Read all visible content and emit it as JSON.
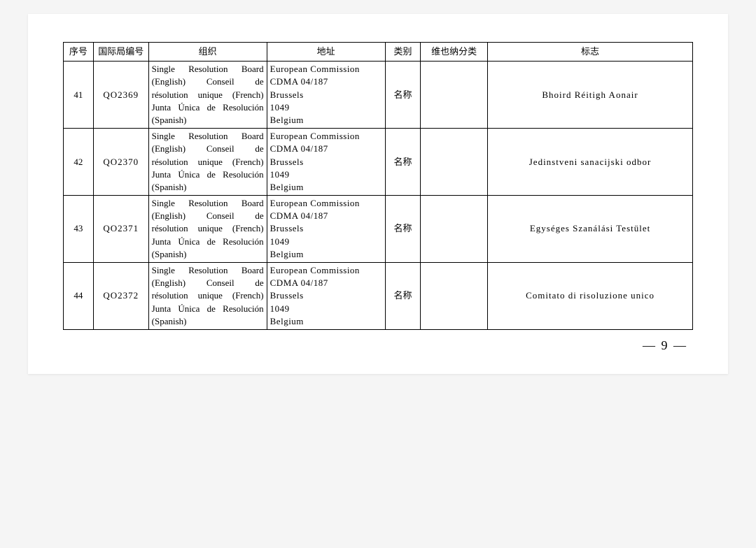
{
  "columns": [
    "序号",
    "国际局编号",
    "组织",
    "地址",
    "类别",
    "维也纳分类",
    "标志"
  ],
  "rows": [
    {
      "seq": "41",
      "code": "QO2369",
      "org": "Single Resolution Board (English) Conseil de résolution unique (French) Junta Única de Resolución (Spanish)",
      "addr": "European Commission\nCDMA 04/187\nBrussels\n1049\nBelgium",
      "cat": "名称",
      "vc": "",
      "mark": "Bhoird Réitigh Aonair"
    },
    {
      "seq": "42",
      "code": "QO2370",
      "org": "Single Resolution Board (English) Conseil de résolution unique (French) Junta Única de Resolución (Spanish)",
      "addr": "European Commission\nCDMA 04/187\nBrussels\n1049\nBelgium",
      "cat": "名称",
      "vc": "",
      "mark": "Jedinstveni sanacijski odbor"
    },
    {
      "seq": "43",
      "code": "QO2371",
      "org": "Single Resolution Board (English) Conseil de résolution unique (French) Junta Única de Resolución (Spanish)",
      "addr": "European Commission\nCDMA 04/187\nBrussels\n1049\nBelgium",
      "cat": "名称",
      "vc": "",
      "mark": "Egységes Szanálási Testület"
    },
    {
      "seq": "44",
      "code": "QO2372",
      "org": "Single Resolution Board (English) Conseil de résolution unique (French) Junta Única de Resolución (Spanish)",
      "addr": "European Commission\nCDMA 04/187\nBrussels\n1049\nBelgium",
      "cat": "名称",
      "vc": "",
      "mark": "Comitato di risoluzione unico"
    }
  ],
  "pageNumber": "— 9 —"
}
